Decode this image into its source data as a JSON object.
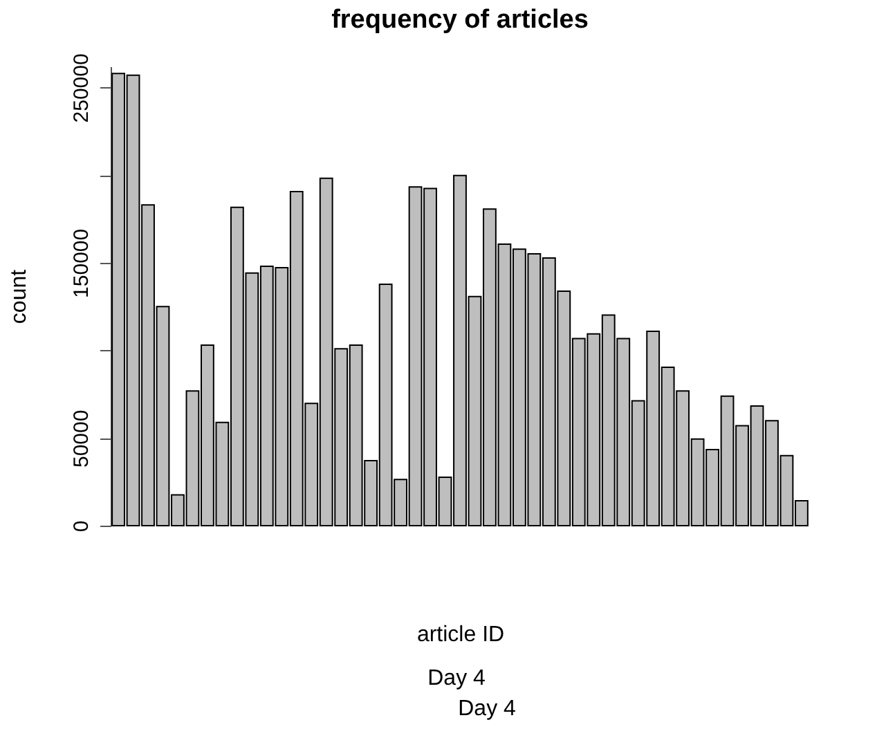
{
  "chart_data": {
    "type": "bar",
    "title": "frequency of articles",
    "xlabel": "article ID",
    "ylabel": "count",
    "annotations": [
      "Day 4",
      "Day 4"
    ],
    "categories": [
      null,
      null,
      null,
      null,
      null,
      null,
      null,
      null,
      null,
      null,
      null,
      null,
      null,
      null,
      null,
      null,
      null,
      null,
      null,
      null,
      null,
      null,
      null,
      null,
      null,
      null,
      null,
      null,
      null,
      null,
      null,
      null,
      null,
      null,
      null,
      null,
      null,
      null,
      null,
      null,
      null,
      null,
      null,
      null,
      null,
      null,
      null
    ],
    "values": [
      258000,
      257000,
      183000,
      125000,
      17600,
      76800,
      103000,
      58900,
      181600,
      144100,
      148000,
      147200,
      190600,
      69700,
      198200,
      100900,
      103000,
      37100,
      137700,
      26300,
      193200,
      192400,
      27600,
      199800,
      130700,
      180600,
      160600,
      157700,
      155100,
      152700,
      133800,
      106700,
      109400,
      120100,
      106700,
      71200,
      110900,
      90400,
      76800,
      49400,
      43400,
      73900,
      57000,
      68300,
      59900,
      40000,
      14200
    ],
    "color": "#bebebe",
    "ylim": [
      0,
      262000
    ],
    "yticks": [
      0,
      50000,
      {
        "value": 100000,
        "label": null
      },
      150000,
      {
        "value": 200000,
        "label": null
      },
      250000
    ],
    "grid": false,
    "tick_labels": "y"
  }
}
